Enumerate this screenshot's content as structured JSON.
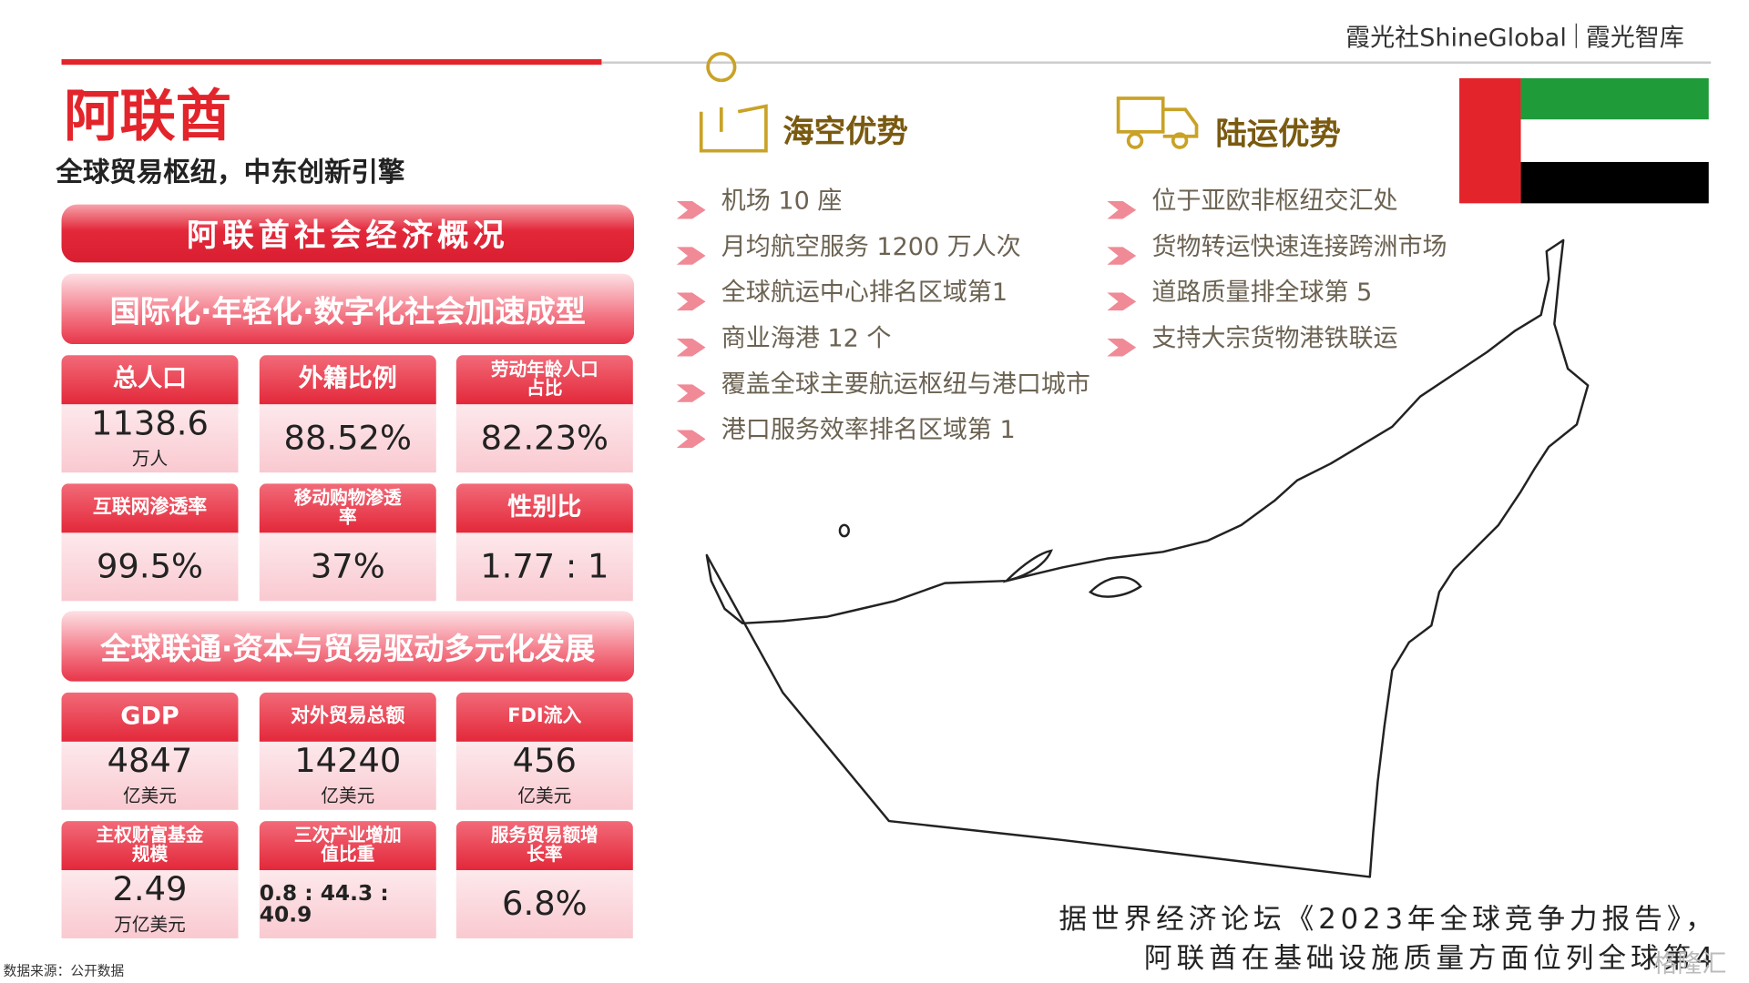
{
  "header": {
    "brand": "霞光社ShineGlobal",
    "brand2": "霞光智库"
  },
  "title": "阿联酋",
  "subtitle": "全球贸易枢纽，中东创新引擎",
  "panel_title": "阿联酋社会经济概况",
  "sections": [
    {
      "title": "国际化·年轻化·数字化社会加速成型",
      "cards": [
        {
          "label": "总人口",
          "value": "1138.6",
          "unit": "万人"
        },
        {
          "label": "外籍比例",
          "value": "88.52%"
        },
        {
          "label": "劳动年龄人口占比",
          "value": "82.23%"
        },
        {
          "label": "互联网渗透率",
          "value": "99.5%"
        },
        {
          "label": "移动购物渗透率",
          "value": "37%"
        },
        {
          "label": "性别比",
          "value": "1.77 : 1"
        }
      ]
    },
    {
      "title": "全球联通·资本与贸易驱动多元化发展",
      "cards": [
        {
          "label": "GDP",
          "value": "4847",
          "unit": "亿美元"
        },
        {
          "label": "对外贸易总额",
          "value": "14240",
          "unit": "亿美元"
        },
        {
          "label": "FDI流入",
          "value": "456",
          "unit": "亿美元"
        },
        {
          "label": "主权财富基金规模",
          "value": "2.49",
          "unit": "万亿美元"
        },
        {
          "label": "三次产业增加值比重",
          "value": "0.8 : 44.3 : 40.9"
        },
        {
          "label": "服务贸易额增长率",
          "value": "6.8%"
        }
      ]
    }
  ],
  "advantages": [
    {
      "title": "海空优势",
      "items": [
        "机场 10 座",
        "月均航空服务 1200 万人次",
        "全球航运中心排名区域第1",
        "商业海港 12 个",
        "覆盖全球主要航运枢纽与港口城市",
        "港口服务效率排名区域第 1"
      ]
    },
    {
      "title": "陆运优势",
      "items": [
        "位于亚欧非枢纽交汇处",
        "货物转运快速连接跨洲市场",
        "道路质量排全球第 5",
        "支持大宗货物港铁联运"
      ]
    }
  ],
  "note": [
    "据世界经济论坛《2023年全球竞争力报告》，",
    "阿联酋在基础设施质量方面位列全球第4"
  ],
  "source": "数据来源：公开数据",
  "watermark": "格隆汇"
}
